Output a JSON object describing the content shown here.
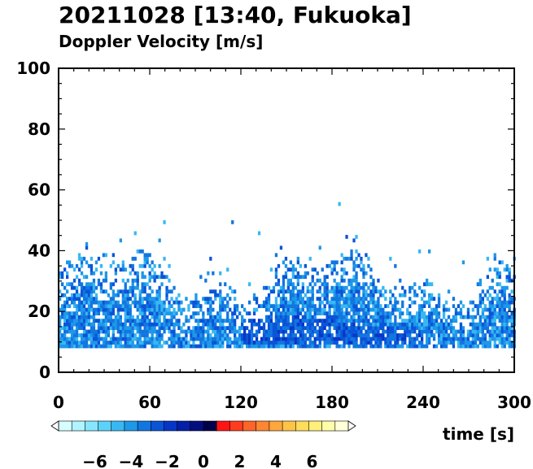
{
  "chart_data": {
    "type": "heatmap",
    "title": "20211028 [13:40, Fukuoka]",
    "subtitle": "Doppler Velocity [m/s]",
    "xlabel": "time [s]",
    "ylabel": "",
    "xlim": [
      0,
      300
    ],
    "ylim": [
      0,
      100
    ],
    "x_ticks": [
      "0",
      "60",
      "120",
      "180",
      "240",
      "300"
    ],
    "y_ticks": [
      "0",
      "20",
      "40",
      "60",
      "80",
      "100"
    ],
    "colorbar": {
      "range": [
        -8,
        8
      ],
      "tick_labels": [
        "−6",
        "−4",
        "−2",
        "0",
        "2",
        "4",
        "6"
      ],
      "colors": [
        "#d8ffff",
        "#b0f4ff",
        "#86e6ff",
        "#5cd2fa",
        "#38b8f2",
        "#1e98e8",
        "#1276e0",
        "#0a54d8",
        "#0636c8",
        "#041ea8",
        "#020e80",
        "#00004a",
        "#ff1414",
        "#ff3c1e",
        "#ff6428",
        "#ff8632",
        "#ffa63c",
        "#ffc446",
        "#ffdc5a",
        "#fff07a",
        "#ffffa8",
        "#ffffd8"
      ]
    },
    "data_summary": {
      "min_height": 8,
      "echo_top_typical": 40,
      "max_echo_height": 58,
      "strong_core": {
        "time_range": [
          120,
          240
        ],
        "height_range": [
          8,
          20
        ],
        "velocity": -2.5
      },
      "typical_velocity": -5
    }
  }
}
